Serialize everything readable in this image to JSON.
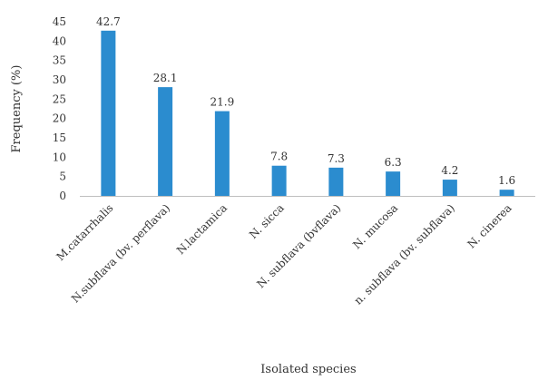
{
  "chart_data": {
    "type": "bar",
    "categories": [
      "M.catarrhalis",
      "N.subflava (bv. perflava)",
      "N.lactamica",
      "N. sicca",
      "N. subflava (bvflava)",
      "N. mucosa",
      "n. subflava (bv. subflava)",
      "N. cinerea"
    ],
    "values": [
      42.7,
      28.1,
      21.9,
      7.8,
      7.3,
      6.3,
      4.2,
      1.6
    ],
    "value_labels": [
      "42.7",
      "28.1",
      "21.9",
      "7.8",
      "7.3",
      "6.3",
      "4.2",
      "1.6"
    ],
    "yticks": [
      0,
      5,
      10,
      15,
      20,
      25,
      30,
      35,
      40,
      45
    ],
    "ylim": [
      0,
      45
    ],
    "xlabel": "Isolated species",
    "ylabel": "Frequency (%)",
    "bar_color": "#2b8ccf",
    "grid": false,
    "legend": false
  }
}
